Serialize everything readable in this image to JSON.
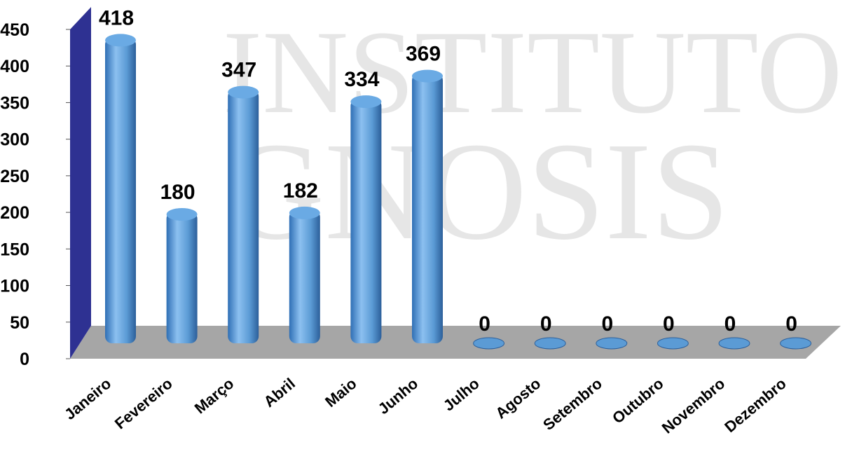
{
  "chart_data": {
    "type": "bar",
    "watermark": [
      "INSTITUTO",
      "GNOSIS"
    ],
    "categories": [
      "Janeiro",
      "Fevereiro",
      "Março",
      "Abril",
      "Maio",
      "Junho",
      "Julho",
      "Agosto",
      "Setembro",
      "Outubro",
      "Novembro",
      "Dezembro"
    ],
    "values": [
      418,
      180,
      347,
      182,
      334,
      369,
      0,
      0,
      0,
      0,
      0,
      0
    ],
    "color": "#5b9bd5",
    "ylim": [
      0,
      450
    ],
    "yticks": [
      0,
      50,
      100,
      150,
      200,
      250,
      300,
      350,
      400,
      450
    ],
    "grid": false
  }
}
